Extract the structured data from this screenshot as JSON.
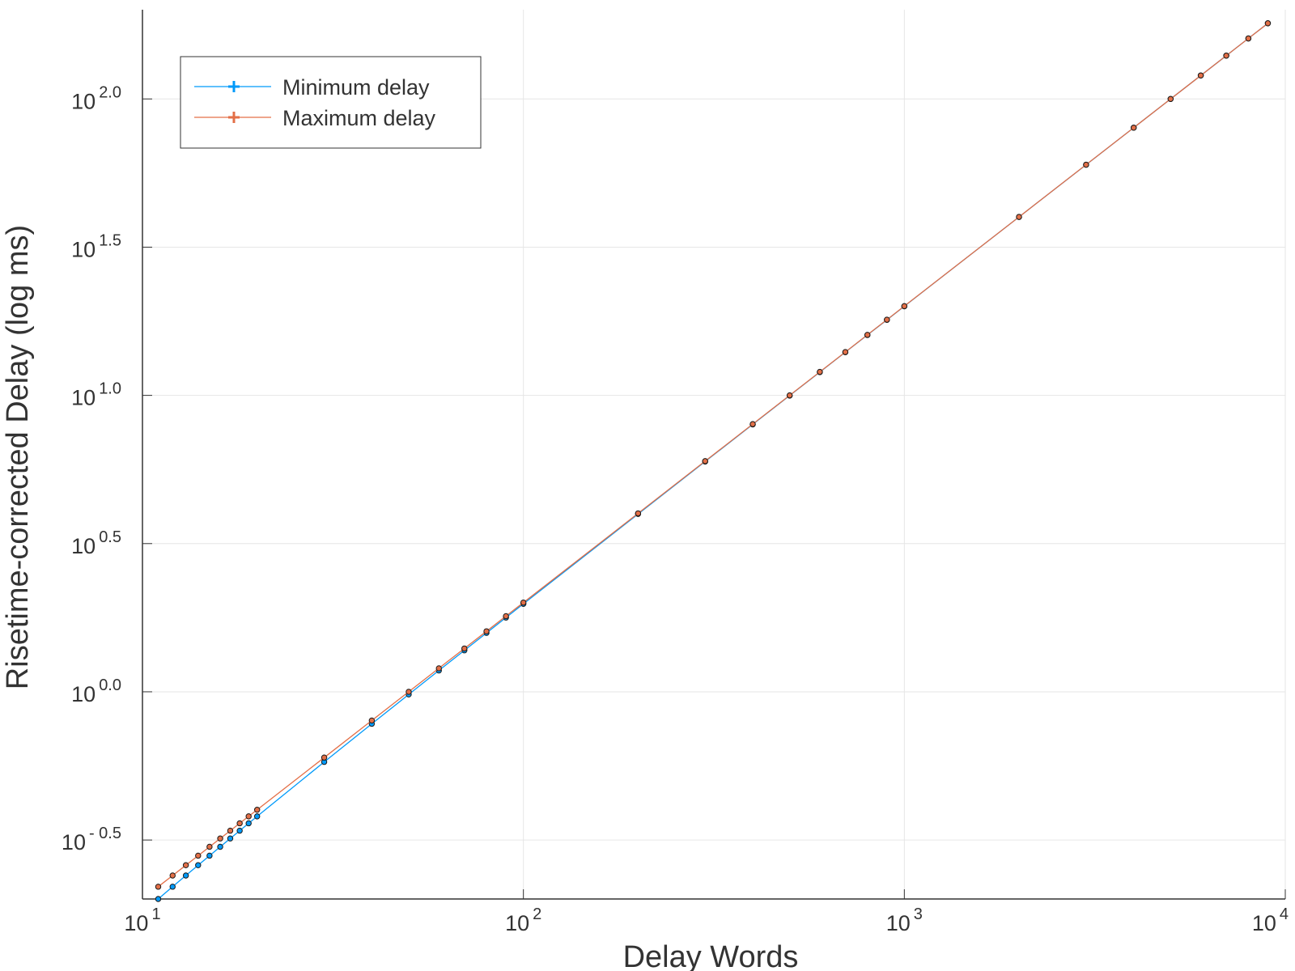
{
  "chart_data": {
    "type": "line",
    "title": "",
    "xlabel": "Delay Words",
    "ylabel": "Risetime-corrected Delay (log ms)",
    "xscale": "log",
    "yscale": "log",
    "xlim": [
      10,
      10000
    ],
    "ylim": [
      0.2,
      200
    ],
    "grid": true,
    "legend_position": "top-left",
    "x_ticks": [
      {
        "base": "10",
        "exp": "1",
        "value": 10
      },
      {
        "base": "10",
        "exp": "2",
        "value": 100
      },
      {
        "base": "10",
        "exp": "3",
        "value": 1000
      },
      {
        "base": "10",
        "exp": "4",
        "value": 10000
      }
    ],
    "y_ticks": [
      {
        "base": "10",
        "exp": "- 0.5",
        "value": 0.3162
      },
      {
        "base": "10",
        "exp": "0.0",
        "value": 1.0
      },
      {
        "base": "10",
        "exp": "0.5",
        "value": 3.162
      },
      {
        "base": "10",
        "exp": "1.0",
        "value": 10.0
      },
      {
        "base": "10",
        "exp": "1.5",
        "value": 31.62
      },
      {
        "base": "10",
        "exp": "2.0",
        "value": 100.0
      }
    ],
    "series": [
      {
        "name": "Minimum delay",
        "color": "#009AFA",
        "x": [
          11,
          12,
          13,
          14,
          15,
          16,
          17,
          18,
          19,
          20,
          30,
          40,
          50,
          60,
          70,
          80,
          90,
          100,
          200,
          300,
          400,
          500,
          600,
          700,
          800,
          900,
          1000,
          2000,
          3000,
          4000,
          5000,
          6000,
          7000,
          8000,
          9000
        ],
        "y": [
          0.2,
          0.22,
          0.24,
          0.26,
          0.28,
          0.3,
          0.32,
          0.34,
          0.36,
          0.38,
          0.58,
          0.78,
          0.98,
          1.18,
          1.38,
          1.58,
          1.78,
          1.98,
          3.98,
          5.98,
          7.98,
          9.98,
          11.98,
          13.98,
          15.98,
          17.98,
          19.98,
          39.98,
          59.98,
          79.98,
          99.98,
          119.98,
          139.98,
          159.98,
          179.98
        ]
      },
      {
        "name": "Maximum delay",
        "color": "#E36F47",
        "x": [
          11,
          12,
          13,
          14,
          15,
          16,
          17,
          18,
          19,
          20,
          30,
          40,
          50,
          60,
          70,
          80,
          90,
          100,
          200,
          300,
          400,
          500,
          600,
          700,
          800,
          900,
          1000,
          2000,
          3000,
          4000,
          5000,
          6000,
          7000,
          8000,
          9000
        ],
        "y": [
          0.22,
          0.24,
          0.26,
          0.28,
          0.3,
          0.32,
          0.34,
          0.36,
          0.38,
          0.4,
          0.6,
          0.8,
          1.0,
          1.2,
          1.4,
          1.6,
          1.8,
          2.0,
          4.0,
          6.0,
          8.0,
          10.0,
          12.0,
          14.0,
          16.0,
          18.0,
          20.0,
          40.0,
          60.0,
          80.0,
          100.0,
          120.0,
          140.0,
          160.0,
          180.0
        ]
      }
    ]
  }
}
